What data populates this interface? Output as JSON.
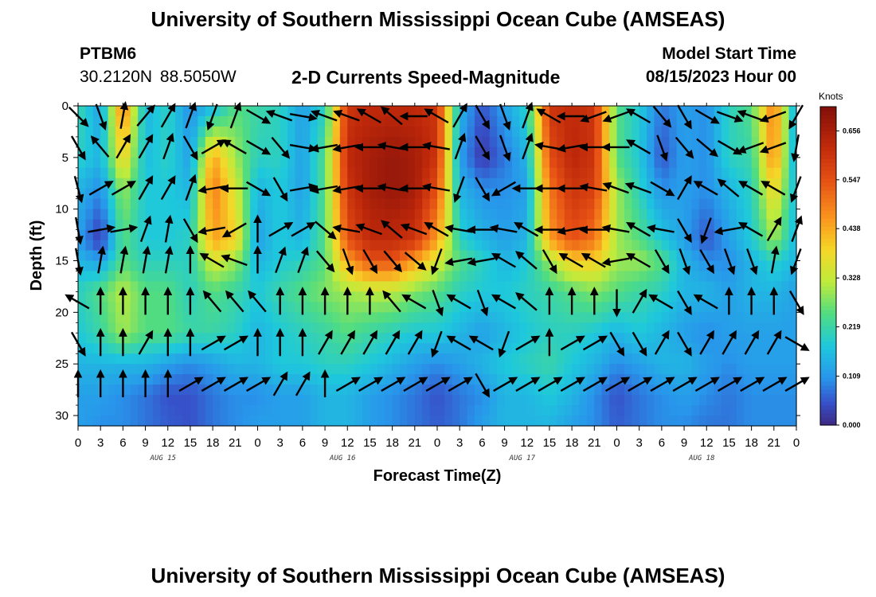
{
  "header": {
    "title": "University of Southern Mississippi Ocean Cube (AMSEAS)",
    "station": "PTBM6",
    "coords": "30.2120N  88.5050W",
    "subtitle": "2-D Currents Speed-Magnitude",
    "start_label": "Model Start Time",
    "start_value": "08/15/2023 Hour 00"
  },
  "footer": {
    "title": "University of Southern Mississippi Ocean Cube (AMSEAS)"
  },
  "chart_data": {
    "type": "heatmap",
    "xlabel": "Forecast Time(Z)",
    "ylabel": "Depth (ft)",
    "x_range": [
      0,
      96
    ],
    "y_range": [
      0,
      31
    ],
    "x_ticks": [
      0,
      3,
      6,
      9,
      12,
      15,
      18,
      21,
      24,
      27,
      30,
      33,
      36,
      39,
      42,
      45,
      48,
      51,
      54,
      57,
      60,
      63,
      66,
      69,
      72,
      75,
      78,
      81,
      84,
      87,
      90,
      93,
      96
    ],
    "x_tick_labels": [
      "0",
      "3",
      "6",
      "9",
      "12",
      "15",
      "18",
      "21",
      "0",
      "3",
      "6",
      "9",
      "12",
      "15",
      "18",
      "21",
      "0",
      "3",
      "6",
      "9",
      "12",
      "15",
      "18",
      "21",
      "0",
      "3",
      "6",
      "9",
      "12",
      "15",
      "18",
      "21",
      "0"
    ],
    "date_labels": [
      {
        "hour": 12,
        "text": "AUG 15"
      },
      {
        "hour": 36,
        "text": "AUG 16"
      },
      {
        "hour": 60,
        "text": "AUG 17"
      },
      {
        "hour": 84,
        "text": "AUG 18"
      }
    ],
    "y_ticks": [
      0,
      5,
      10,
      15,
      20,
      25,
      30
    ],
    "colorbar": {
      "unit": "Knots",
      "min": 0,
      "max": 0.71,
      "ticks": [
        0.0,
        0.109,
        0.219,
        0.328,
        0.438,
        0.547,
        0.656
      ],
      "tick_labels": [
        "0.000",
        "0.109",
        "0.219",
        "0.328",
        "0.438",
        "0.547",
        "0.656"
      ]
    },
    "depths": [
      0,
      5,
      8,
      13,
      15,
      18,
      22,
      25,
      28,
      31
    ],
    "hours": [
      0,
      3,
      6,
      9,
      12,
      15,
      18,
      21,
      24,
      27,
      30,
      33,
      36,
      39,
      42,
      45,
      48,
      51,
      54,
      57,
      60,
      63,
      66,
      69,
      72,
      75,
      78,
      81,
      84,
      87,
      90,
      93,
      96
    ],
    "speed": [
      [
        0.22,
        0.12,
        0.5,
        0.15,
        0.2,
        0.1,
        0.15,
        0.25,
        0.22,
        0.2,
        0.12,
        0.2,
        0.6,
        0.62,
        0.62,
        0.62,
        0.6,
        0.15,
        0.05,
        0.12,
        0.2,
        0.6,
        0.62,
        0.6,
        0.25,
        0.18,
        0.08,
        0.12,
        0.1,
        0.2,
        0.25,
        0.5,
        0.12
      ],
      [
        0.2,
        0.15,
        0.4,
        0.16,
        0.2,
        0.12,
        0.45,
        0.3,
        0.2,
        0.2,
        0.12,
        0.25,
        0.62,
        0.66,
        0.68,
        0.66,
        0.6,
        0.12,
        0.02,
        0.08,
        0.15,
        0.55,
        0.63,
        0.6,
        0.25,
        0.18,
        0.05,
        0.12,
        0.1,
        0.2,
        0.22,
        0.48,
        0.12
      ],
      [
        0.15,
        0.1,
        0.3,
        0.18,
        0.18,
        0.15,
        0.5,
        0.35,
        0.15,
        0.18,
        0.12,
        0.25,
        0.6,
        0.66,
        0.68,
        0.66,
        0.55,
        0.15,
        0.1,
        0.1,
        0.12,
        0.5,
        0.6,
        0.58,
        0.3,
        0.2,
        0.1,
        0.12,
        0.1,
        0.15,
        0.2,
        0.4,
        0.15
      ],
      [
        0.12,
        0.02,
        0.25,
        0.18,
        0.18,
        0.2,
        0.45,
        0.4,
        0.12,
        0.18,
        0.15,
        0.25,
        0.55,
        0.62,
        0.62,
        0.6,
        0.45,
        0.2,
        0.15,
        0.12,
        0.15,
        0.45,
        0.55,
        0.5,
        0.3,
        0.25,
        0.18,
        0.12,
        0.05,
        0.12,
        0.18,
        0.3,
        0.15
      ],
      [
        0.15,
        0.12,
        0.25,
        0.2,
        0.2,
        0.2,
        0.35,
        0.3,
        0.15,
        0.18,
        0.2,
        0.25,
        0.45,
        0.55,
        0.55,
        0.45,
        0.35,
        0.25,
        0.2,
        0.15,
        0.18,
        0.3,
        0.4,
        0.4,
        0.3,
        0.3,
        0.25,
        0.15,
        0.1,
        0.1,
        0.15,
        0.2,
        0.15
      ],
      [
        0.2,
        0.25,
        0.32,
        0.25,
        0.25,
        0.2,
        0.25,
        0.22,
        0.18,
        0.22,
        0.25,
        0.28,
        0.3,
        0.32,
        0.32,
        0.28,
        0.25,
        0.2,
        0.18,
        0.18,
        0.2,
        0.22,
        0.25,
        0.28,
        0.25,
        0.22,
        0.2,
        0.15,
        0.15,
        0.12,
        0.15,
        0.15,
        0.12
      ],
      [
        0.18,
        0.22,
        0.3,
        0.25,
        0.25,
        0.22,
        0.22,
        0.2,
        0.15,
        0.18,
        0.2,
        0.22,
        0.25,
        0.22,
        0.2,
        0.18,
        0.18,
        0.15,
        0.12,
        0.15,
        0.18,
        0.2,
        0.2,
        0.18,
        0.15,
        0.18,
        0.15,
        0.12,
        0.1,
        0.12,
        0.12,
        0.12,
        0.12
      ],
      [
        0.15,
        0.15,
        0.15,
        0.15,
        0.12,
        0.1,
        0.12,
        0.15,
        0.15,
        0.18,
        0.18,
        0.2,
        0.2,
        0.18,
        0.15,
        0.12,
        0.1,
        0.12,
        0.15,
        0.18,
        0.2,
        0.22,
        0.18,
        0.15,
        0.1,
        0.12,
        0.15,
        0.15,
        0.12,
        0.1,
        0.12,
        0.12,
        0.12
      ],
      [
        0.12,
        0.12,
        0.1,
        0.08,
        0.05,
        0.05,
        0.08,
        0.1,
        0.1,
        0.12,
        0.12,
        0.15,
        0.15,
        0.12,
        0.1,
        0.08,
        0.05,
        0.08,
        0.1,
        0.15,
        0.15,
        0.18,
        0.15,
        0.1,
        0.05,
        0.08,
        0.1,
        0.12,
        0.1,
        0.08,
        0.1,
        0.1,
        0.1
      ],
      [
        0.12,
        0.1,
        0.1,
        0.08,
        0.06,
        0.05,
        0.08,
        0.1,
        0.12,
        0.12,
        0.12,
        0.15,
        0.15,
        0.12,
        0.1,
        0.08,
        0.06,
        0.08,
        0.12,
        0.15,
        0.15,
        0.15,
        0.12,
        0.1,
        0.06,
        0.08,
        0.1,
        0.1,
        0.08,
        0.08,
        0.1,
        0.1,
        0.1
      ]
    ],
    "vector_depths": [
      1,
      4,
      8,
      12,
      15,
      19,
      23,
      27
    ],
    "vector_hours": [
      0,
      3,
      6,
      9,
      12,
      15,
      18,
      21,
      24,
      27,
      30,
      33,
      36,
      39,
      42,
      45,
      48,
      51,
      54,
      57,
      60,
      63,
      66,
      69,
      72,
      75,
      78,
      81,
      84,
      87,
      90,
      93,
      96
    ],
    "vector_direction_deg": [
      [
        135,
        160,
        10,
        40,
        30,
        20,
        200,
        20,
        120,
        290,
        100,
        290,
        290,
        300,
        310,
        270,
        300,
        30,
        150,
        160,
        20,
        300,
        270,
        250,
        250,
        300,
        140,
        150,
        120,
        110,
        290,
        250,
        210
      ],
      [
        150,
        320,
        30,
        30,
        20,
        150,
        60,
        300,
        120,
        140,
        100,
        260,
        260,
        270,
        280,
        270,
        280,
        20,
        150,
        160,
        20,
        280,
        260,
        270,
        270,
        300,
        160,
        140,
        130,
        120,
        250,
        250,
        190
      ],
      [
        165,
        60,
        60,
        30,
        30,
        20,
        260,
        270,
        120,
        150,
        80,
        260,
        260,
        270,
        280,
        270,
        280,
        200,
        150,
        240,
        270,
        270,
        270,
        280,
        290,
        290,
        120,
        30,
        300,
        310,
        300,
        300,
        200
      ],
      [
        170,
        80,
        80,
        20,
        10,
        150,
        260,
        240,
        0,
        60,
        60,
        130,
        280,
        290,
        310,
        290,
        300,
        280,
        270,
        280,
        300,
        270,
        260,
        270,
        280,
        300,
        280,
        150,
        200,
        260,
        300,
        30,
        20
      ],
      [
        170,
        10,
        10,
        10,
        10,
        0,
        300,
        290,
        0,
        20,
        20,
        140,
        160,
        150,
        140,
        130,
        200,
        260,
        260,
        300,
        310,
        150,
        300,
        300,
        260,
        300,
        150,
        160,
        150,
        160,
        160,
        10,
        200
      ],
      [
        300,
        0,
        0,
        0,
        0,
        0,
        320,
        320,
        320,
        0,
        0,
        0,
        0,
        0,
        320,
        300,
        160,
        300,
        160,
        300,
        310,
        0,
        0,
        0,
        180,
        30,
        300,
        150,
        300,
        0,
        0,
        0,
        150
      ],
      [
        150,
        0,
        0,
        30,
        0,
        0,
        60,
        60,
        0,
        0,
        0,
        30,
        30,
        30,
        30,
        30,
        200,
        300,
        300,
        200,
        60,
        0,
        60,
        60,
        150,
        150,
        30,
        150,
        30,
        30,
        30,
        30,
        120
      ],
      [
        0,
        0,
        0,
        0,
        0,
        60,
        60,
        60,
        60,
        30,
        30,
        0,
        60,
        60,
        60,
        60,
        60,
        60,
        150,
        60,
        60,
        60,
        60,
        60,
        60,
        60,
        60,
        60,
        60,
        60,
        60,
        60,
        60
      ]
    ]
  }
}
